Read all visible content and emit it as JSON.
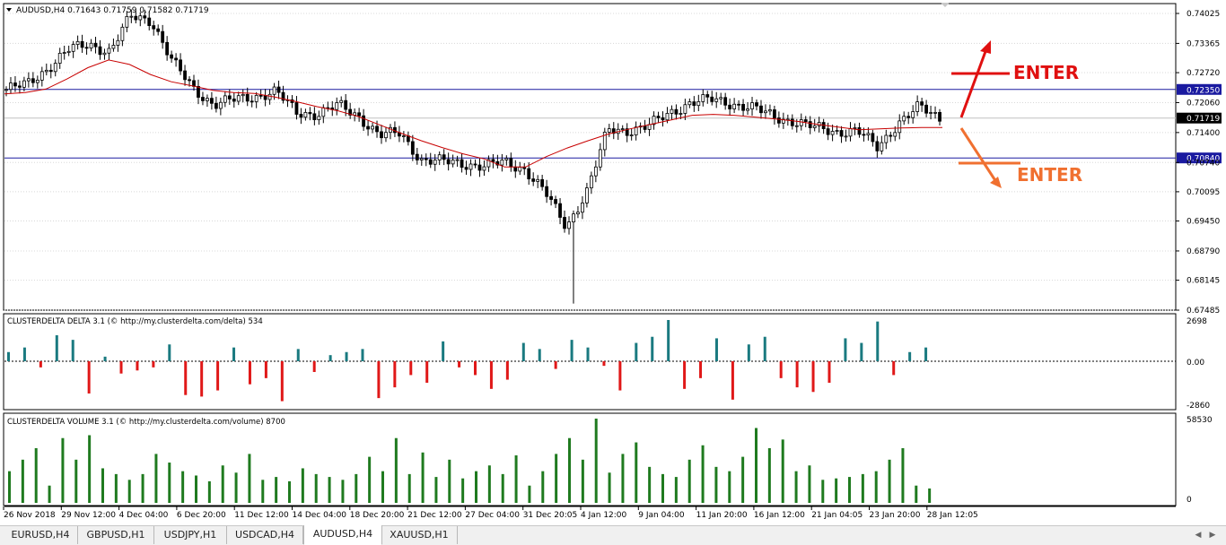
{
  "main_panel": {
    "header": "AUDUSD,H4  0.71643 0.71759 0.71582 0.71719",
    "price_labels": [
      "0.74025",
      "0.73365",
      "0.72720",
      "0.72060",
      "0.71400",
      "0.70740",
      "0.70095",
      "0.69450",
      "0.68790",
      "0.68145",
      "0.67485"
    ],
    "level_up": "0.72350",
    "level_down": "0.70840",
    "current_price": "0.71719",
    "annotation_up": "ENTER",
    "annotation_down": "ENTER",
    "colors": {
      "level": "#1a1aa0",
      "ma": "#c80000",
      "up_arrow": "#e01010",
      "down_arrow": "#f07030",
      "current": "#000000"
    }
  },
  "delta_panel": {
    "header": "CLUSTERDELTA DELTA 3.1 (© http://my.clusterdelta.com/delta) 534",
    "scale": [
      "2698",
      "0.00",
      "-2860"
    ],
    "colors": {
      "positive": "#1a7a80",
      "negative": "#e01818"
    }
  },
  "volume_panel": {
    "header": "CLUSTERDELTA VOLUME 3.1 (© http://my.clusterdelta.com/volume) 8700",
    "scale": [
      "58530",
      "0"
    ],
    "colors": {
      "bar": "#1f7a1f"
    }
  },
  "time_axis": [
    "26 Nov 2018",
    "29 Nov 12:00",
    "4 Dec 04:00",
    "6 Dec 20:00",
    "11 Dec 12:00",
    "14 Dec 04:00",
    "18 Dec 20:00",
    "21 Dec 12:00",
    "27 Dec 04:00",
    "31 Dec 20:05",
    "4 Jan 12:00",
    "9 Jan 04:00",
    "11 Jan 20:00",
    "16 Jan 12:00",
    "21 Jan 04:05",
    "23 Jan 20:00",
    "28 Jan 12:05"
  ],
  "tabs": [
    {
      "label": "EURUSD,H4",
      "active": false
    },
    {
      "label": "GBPUSD,H1",
      "active": false
    },
    {
      "label": "USDJPY,H1",
      "active": false
    },
    {
      "label": "USDCAD,H4",
      "active": false
    },
    {
      "label": "AUDUSD,H4",
      "active": true
    },
    {
      "label": "XAUUSD,H1",
      "active": false
    }
  ],
  "chart_data": [
    {
      "type": "line",
      "title": "AUDUSD,H4",
      "subtitle": "0.71643 0.71759 0.71582 0.71719",
      "ylim": [
        0.67485,
        0.74025
      ],
      "yticks": [
        0.74025,
        0.73365,
        0.7272,
        0.7206,
        0.714,
        0.7074,
        0.70095,
        0.6945,
        0.6879,
        0.68145,
        0.67485
      ],
      "horizontal_lines": [
        0.7235,
        0.7084
      ],
      "series": [
        {
          "values": [
            0.7235,
            0.7246,
            0.7282,
            0.7322,
            0.7335,
            0.7318,
            0.7396,
            0.7388,
            0.7296,
            0.7238,
            0.7202,
            0.7212,
            0.722,
            0.723,
            0.7184,
            0.7181,
            0.72,
            0.7176,
            0.7134,
            0.7138,
            0.708,
            0.7076,
            0.7072,
            0.7066,
            0.7074,
            0.706,
            0.7006,
            0.6932,
            0.7012,
            0.7146,
            0.7145,
            0.7155,
            0.7183,
            0.7207,
            0.7212,
            0.7204,
            0.7194,
            0.7175,
            0.7165,
            0.715,
            0.7142,
            0.7145,
            0.7106,
            0.7162,
            0.7196,
            0.7172
          ]
        },
        {
          "name": "moving average",
          "values": [
            0.7225,
            0.7228,
            0.7236,
            0.7258,
            0.7283,
            0.73,
            0.729,
            0.7268,
            0.7252,
            0.7243,
            0.7233,
            0.7228,
            0.7226,
            0.7218,
            0.7208,
            0.7197,
            0.7188,
            0.7175,
            0.7157,
            0.7139,
            0.7122,
            0.7107,
            0.7093,
            0.7082,
            0.7064,
            0.7064,
            0.7087,
            0.7106,
            0.7122,
            0.7137,
            0.7148,
            0.7158,
            0.7168,
            0.7178,
            0.718,
            0.7178,
            0.7174,
            0.717,
            0.7165,
            0.7158,
            0.7152,
            0.7146,
            0.7148,
            0.715,
            0.7151,
            0.7151
          ]
        }
      ],
      "annotations": [
        "ENTER",
        "ENTER"
      ]
    },
    {
      "type": "bar",
      "title": "CLUSTERDELTA DELTA 3.1 (© http://my.clusterdelta.com/delta) 534",
      "ylim": [
        -2860,
        2698
      ],
      "values": [
        600,
        900,
        -400,
        1700,
        1400,
        -2100,
        300,
        -800,
        -600,
        -400,
        1100,
        -2200,
        -2300,
        -1900,
        900,
        -1500,
        -1100,
        -2600,
        800,
        -700,
        400,
        600,
        800,
        -2400,
        -1700,
        -900,
        -1400,
        1300,
        -400,
        -900,
        -1800,
        -1200,
        1200,
        800,
        -500,
        1400,
        900,
        -300,
        -1900,
        1200,
        1600,
        2698,
        -1800,
        -1100,
        1500,
        -2500,
        1100,
        1600,
        -1100,
        -1700,
        -2000,
        -1400,
        1500,
        1200,
        2600,
        -900,
        600,
        900
      ]
    },
    {
      "type": "bar",
      "title": "CLUSTERDELTA VOLUME 3.1 (© http://my.clusterdelta.com/volume) 8700",
      "ylim": [
        0,
        58530
      ],
      "values": [
        22000,
        30000,
        38000,
        12000,
        45000,
        30000,
        47000,
        24000,
        20000,
        16000,
        20000,
        34000,
        28000,
        22000,
        19000,
        15000,
        26000,
        21000,
        34000,
        16000,
        18000,
        15000,
        24000,
        20000,
        18000,
        16000,
        20000,
        32000,
        22000,
        45000,
        20000,
        35000,
        18000,
        30000,
        17000,
        22000,
        26000,
        20000,
        33000,
        12000,
        22000,
        34000,
        45000,
        30000,
        58530,
        21000,
        34000,
        42000,
        25000,
        20000,
        18000,
        30000,
        40000,
        25000,
        22000,
        32000,
        52000,
        38000,
        44000,
        22000,
        26000,
        16000,
        17000,
        18000,
        20000,
        22000,
        30000,
        38000,
        12000,
        10000
      ]
    }
  ]
}
